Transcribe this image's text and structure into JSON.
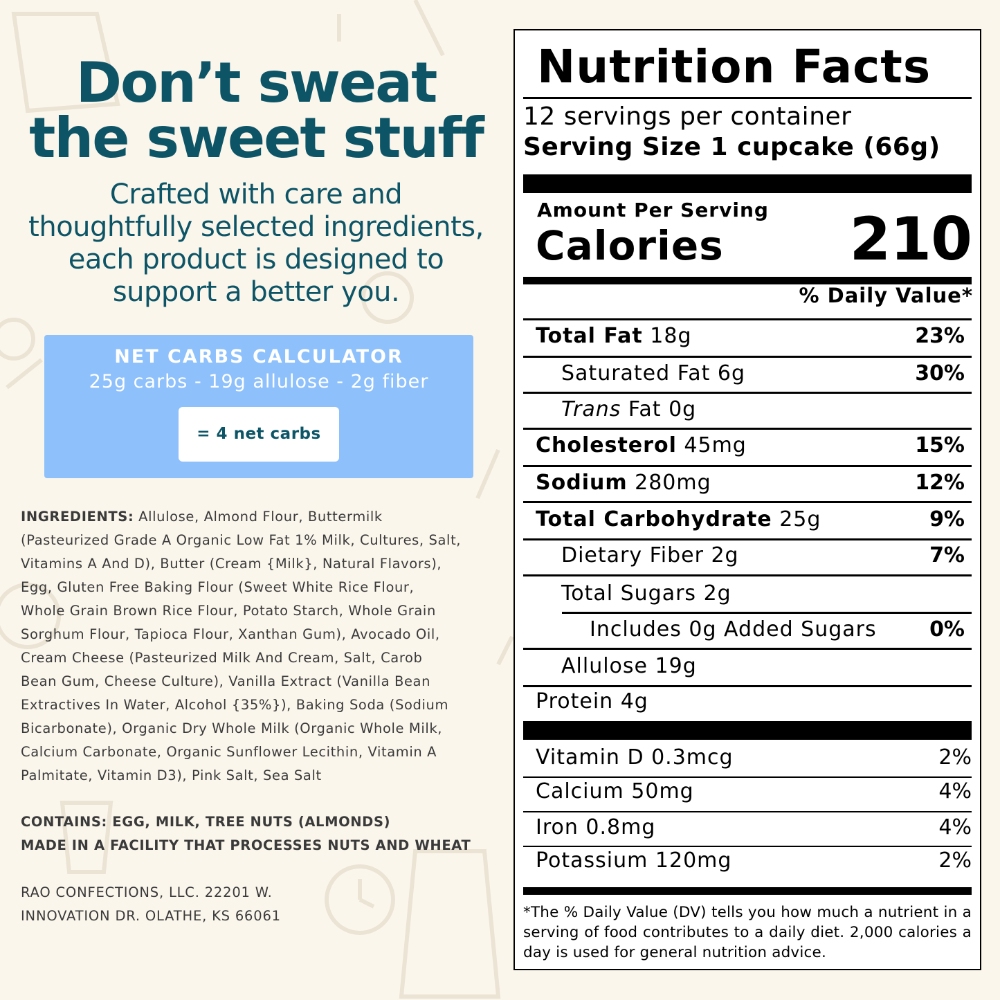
{
  "hero": {
    "headline_line1": "Don’t sweat",
    "headline_line2": "the sweet stuff",
    "sub_line1": "Crafted with care and",
    "sub_line2": "thoughtfully selected ingredients,",
    "sub_line3": "each product is designed to",
    "sub_line4": "support a better you."
  },
  "calculator": {
    "title": "NET CARBS CALCULATOR",
    "formula": "25g carbs - 19g allulose - 2g fiber",
    "result": "= 4 net carbs"
  },
  "ingredients": {
    "label": "INGREDIENTS:",
    "lines": [
      " Allulose, Almond Flour, Buttermilk",
      "(Pasteurized Grade A Organic Low Fat 1% Milk, Cultures, Salt,",
      "Vitamins A And D), Butter (Cream {Milk}, Natural Flavors),",
      "Egg, Gluten Free Baking Flour (Sweet White Rice Flour,",
      "Whole Grain Brown Rice Flour, Potato Starch, Whole Grain",
      "Sorghum Flour, Tapioca Flour, Xanthan Gum), Avocado Oil,",
      "Cream Cheese (Pasteurized Milk And Cream, Salt, Carob",
      "Bean Gum, Cheese Culture), Vanilla Extract (Vanilla Bean",
      "Extractives In Water, Alcohol {35%}), Baking Soda (Sodium",
      "Bicarbonate), Organic Dry Whole Milk (Organic Whole Milk,",
      "Calcium Carbonate, Organic Sunflower Lecithin, Vitamin A",
      "Palmitate, Vitamin D3), Pink Salt, Sea Salt"
    ]
  },
  "allergens": {
    "contains": "CONTAINS: EGG, MILK, TREE NUTS (ALMONDS)",
    "facility": "MADE IN A FACILITY THAT PROCESSES NUTS AND WHEAT"
  },
  "address": {
    "line1": "RAO CONFECTIONS, LLC. 22201 W.",
    "line2": "INNOVATION DR. OLATHE, KS 66061"
  },
  "nutrition": {
    "title": "Nutrition Facts",
    "servings": "12 servings per container",
    "serving_size": "Serving Size 1 cupcake (66g)",
    "amount_per_serving": "Amount Per Serving",
    "calories_label": "Calories",
    "calories_value": "210",
    "dv_header": "% Daily Value*",
    "rows": [
      {
        "bold": "Total Fat",
        "amount": " 18g",
        "pct": "23%"
      },
      {
        "bold": "",
        "amount": "Saturated Fat 6g",
        "pct": "30%"
      },
      {
        "italic": "Trans",
        "amount": " Fat 0g",
        "pct": ""
      },
      {
        "bold": "Cholesterol",
        "amount": " 45mg",
        "pct": "15%"
      },
      {
        "bold": "Sodium",
        "amount": " 280mg",
        "pct": "12%"
      },
      {
        "bold": "Total Carbohydrate",
        "amount": " 25g",
        "pct": "9%"
      },
      {
        "bold": "",
        "amount": "Dietary Fiber 2g",
        "pct": "7%"
      },
      {
        "bold": "",
        "amount": "Total Sugars 2g",
        "pct": ""
      },
      {
        "bold": "",
        "amount": "Includes 0g Added Sugars",
        "pct": "0%"
      },
      {
        "bold": "",
        "amount": "Allulose 19g",
        "pct": ""
      },
      {
        "bold": "",
        "amount": "Protein 4g",
        "pct": ""
      }
    ],
    "vitamins": [
      {
        "name": "Vitamin D 0.3mcg",
        "pct": "2%"
      },
      {
        "name": "Calcium 50mg",
        "pct": "4%"
      },
      {
        "name": "Iron 0.8mg",
        "pct": "4%"
      },
      {
        "name": "Potassium 120mg",
        "pct": "2%"
      }
    ],
    "footnote": "*The % Daily Value (DV) tells you how much a nutrient in a serving of food contributes to a daily diet. 2,000 calories a day is used for general nutrition advice."
  }
}
